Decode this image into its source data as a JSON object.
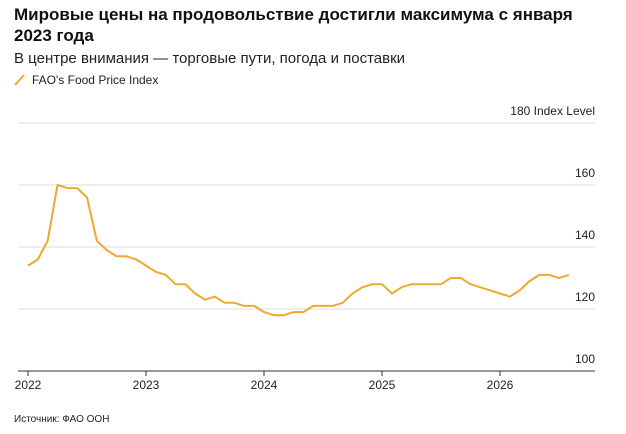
{
  "chart_data": {
    "type": "line",
    "title": "Мировые цены на продовольствие достигли максимума с января 2023 года",
    "subtitle": "В центре внимания — торговые пути, погода и поставки",
    "source": "Источник: ФАО ООН",
    "categories": [
      "2022",
      null,
      null,
      null,
      null,
      null,
      null,
      null,
      null,
      null,
      null,
      null,
      "2023",
      null,
      null,
      null,
      null,
      null,
      null,
      null,
      null,
      null,
      null,
      null,
      "2024",
      null,
      null,
      null,
      null,
      null,
      null,
      null,
      null,
      null,
      null,
      null,
      "2025",
      null,
      null,
      null,
      null,
      null,
      null,
      null,
      null,
      null,
      null,
      null,
      "2026",
      null,
      null,
      null,
      null,
      null,
      null,
      null
    ],
    "series": [
      {
        "name": "FAO's Food Price Index",
        "color": "#f0a830",
        "values": [
          134,
          136,
          142,
          160,
          159,
          159,
          156,
          142,
          139,
          137,
          137,
          136,
          134,
          132,
          131,
          128,
          128,
          125,
          123,
          124,
          122,
          122,
          121,
          121,
          119,
          118,
          118,
          119,
          119,
          121,
          121,
          121,
          122,
          125,
          127,
          128,
          128,
          125,
          127,
          128,
          128,
          128,
          128,
          130,
          130,
          128,
          127,
          126,
          125,
          124,
          126,
          129,
          131,
          131,
          130,
          131
        ]
      }
    ],
    "ylim": [
      100,
      180
    ],
    "yticks": [
      100,
      120,
      140,
      160,
      {
        "value": 180,
        "label": "180 Index Level"
      }
    ],
    "grid": true
  }
}
